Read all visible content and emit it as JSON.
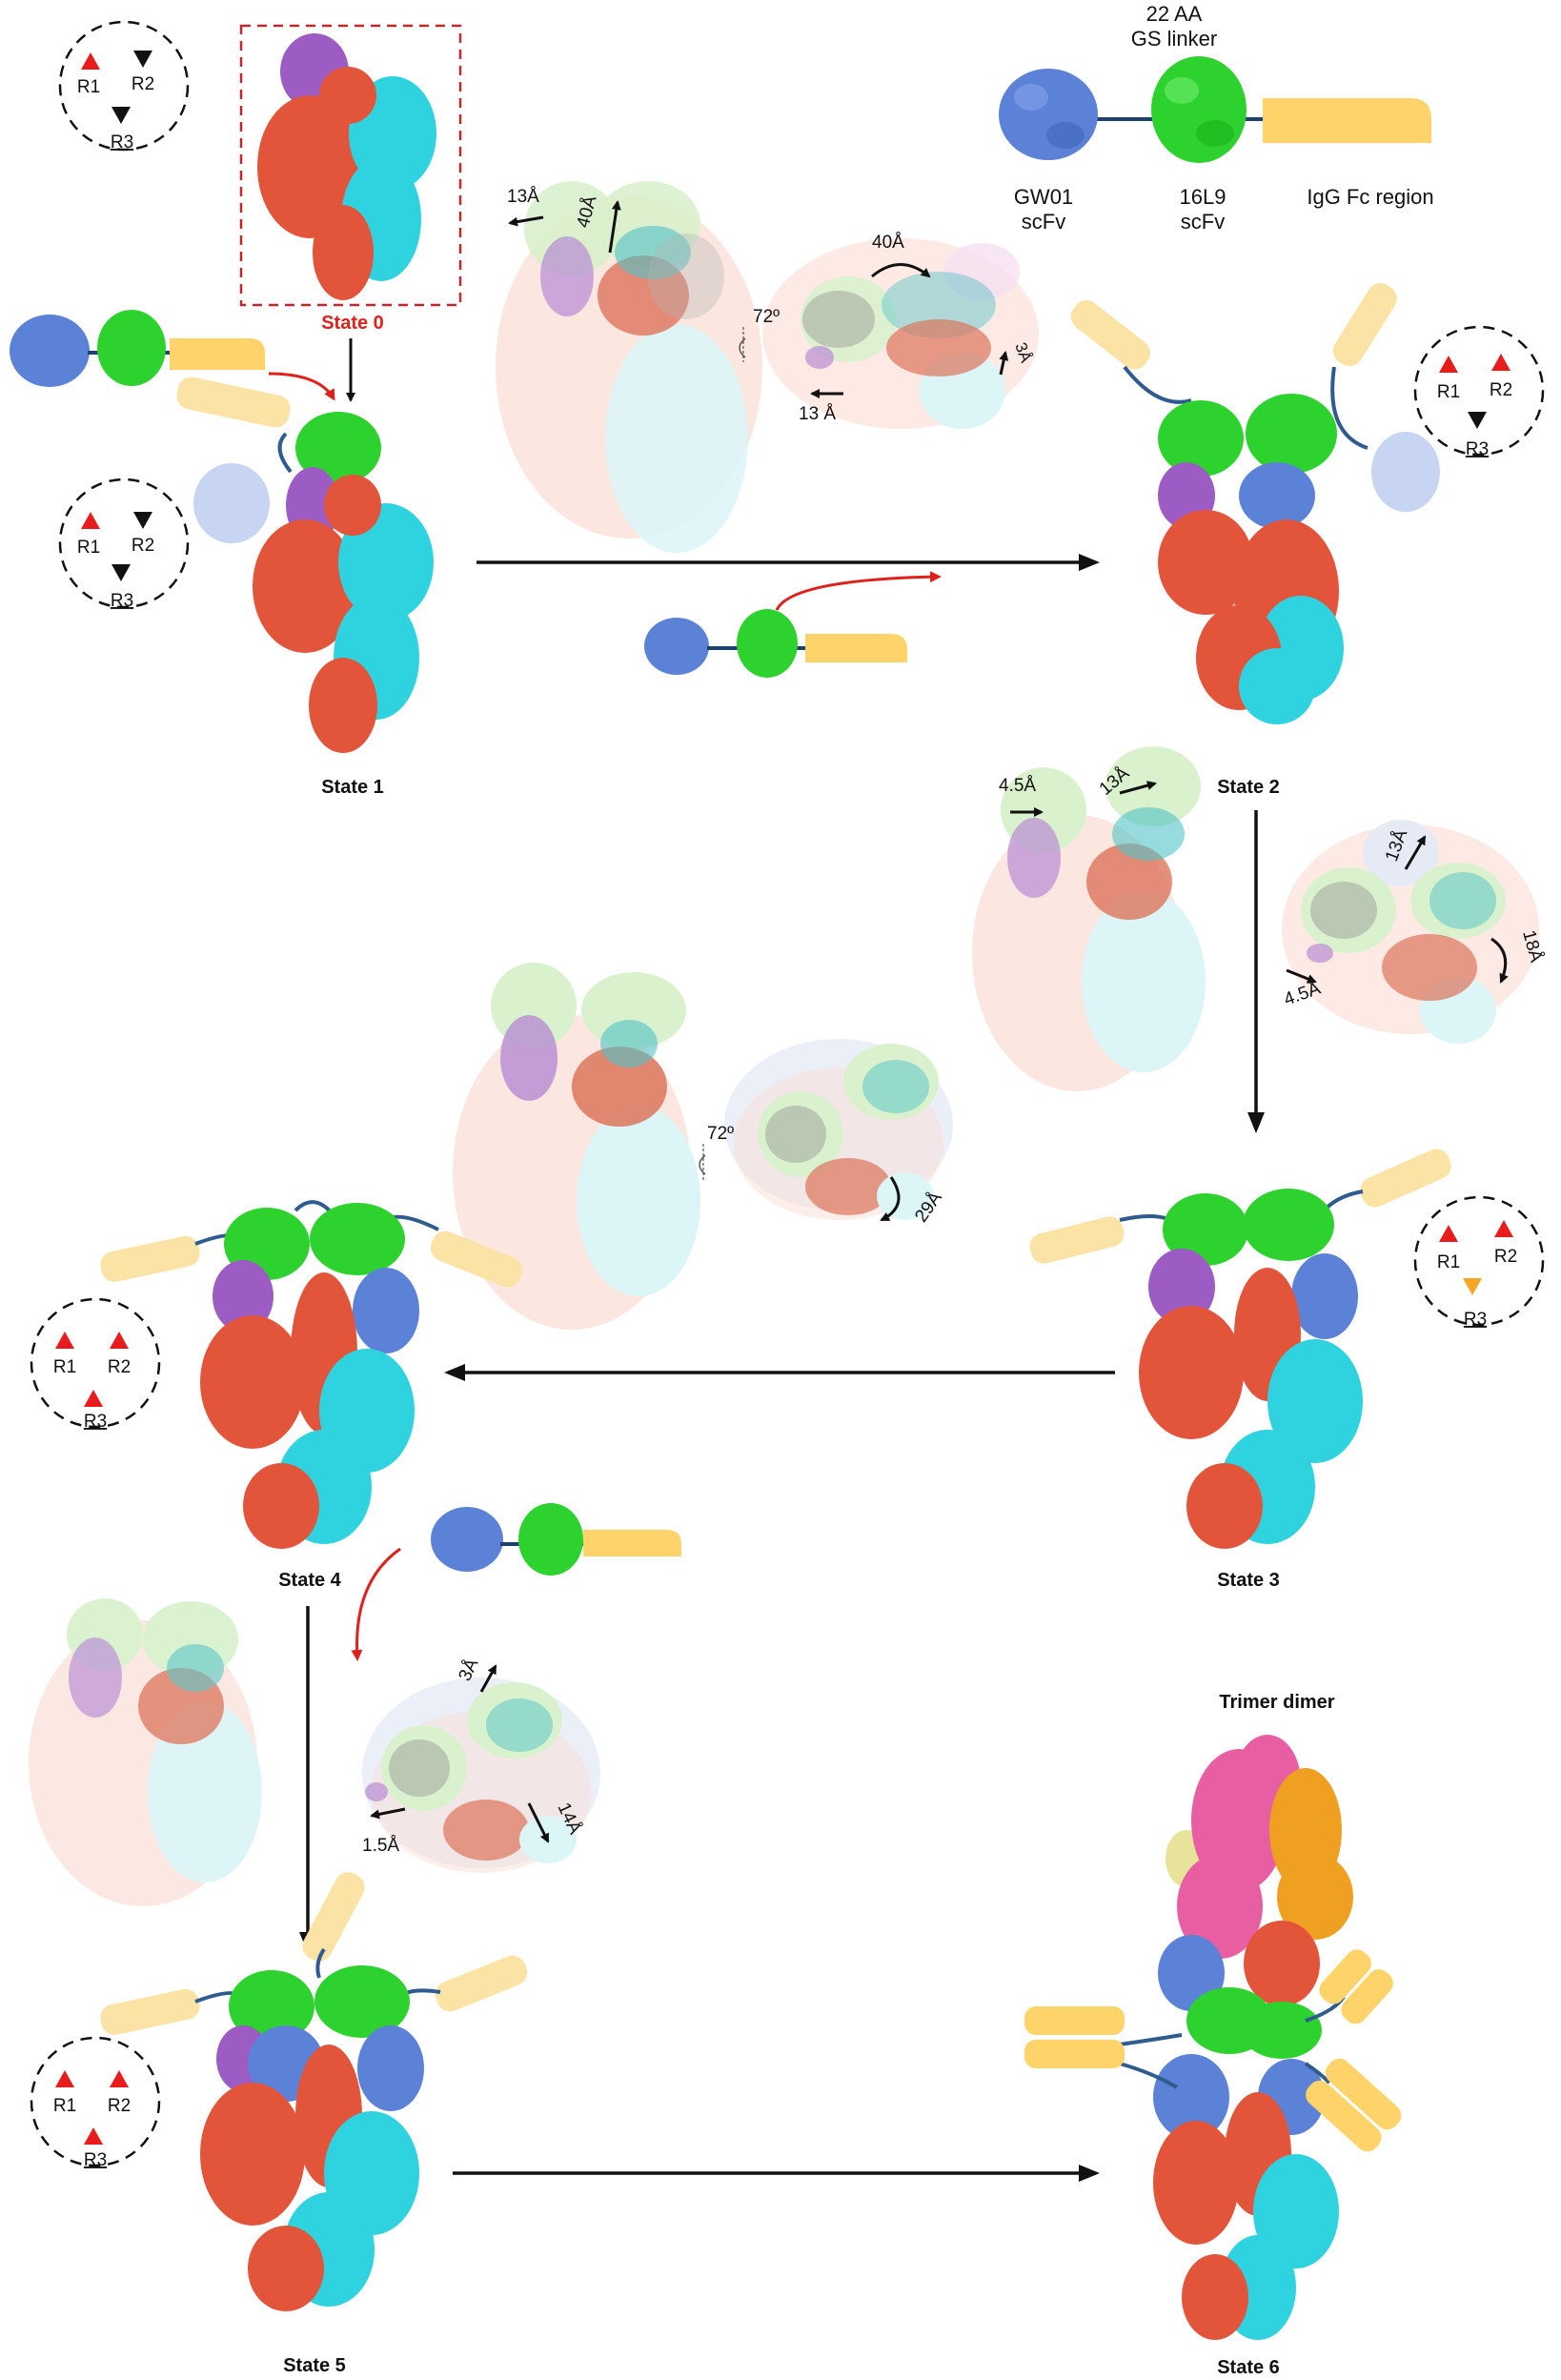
{
  "colors": {
    "gw01": "#5b82d6",
    "scfv16l9": "#2ed22e",
    "fc": "#fdd36a",
    "fc_faded": "#fbe3a6",
    "linker": "#1f3f6e",
    "red_orange": "#e2553a",
    "cyan": "#2fd3e0",
    "purple": "#9d5cc4",
    "pink": "#e85ea2",
    "orange": "#f0a020",
    "state0_red": "#e0201b",
    "arrow_red": "#e0201b",
    "triangle_red": "#e81c1c",
    "triangle_black": "#111111",
    "triangle_orange": "#f5a623"
  },
  "legend": {
    "linker_line1": "22 AA",
    "linker_line2": "GS linker",
    "gw01_line1": "GW01",
    "gw01_line2": "scFv",
    "scfv_line1": "16L9",
    "scfv_line2": "scFv",
    "fc": "IgG Fc region"
  },
  "states": {
    "s0": "State 0",
    "s1": "State 1",
    "s2": "State 2",
    "s3": "State 3",
    "s4": "State 4",
    "s5": "State 5",
    "s6": "State 6",
    "trimer": "Trimer dimer"
  },
  "rbd": {
    "r1": "R1",
    "r2": "R2",
    "r3": "R3"
  },
  "measurements": {
    "m1a": "13Å",
    "m1b": "40Å",
    "m1c": "72º",
    "m1d": "40Å",
    "m1e": "3Å",
    "m1f": "13 Å",
    "m2a": "4.5Å",
    "m2b": "13Å",
    "m2c": "13Å",
    "m2d": "18Å",
    "m2e": "4.5Å",
    "m3a": "72º",
    "m3b": "29Å",
    "m4a": "3Å",
    "m4b": "1.5Å",
    "m4c": "14Å"
  }
}
